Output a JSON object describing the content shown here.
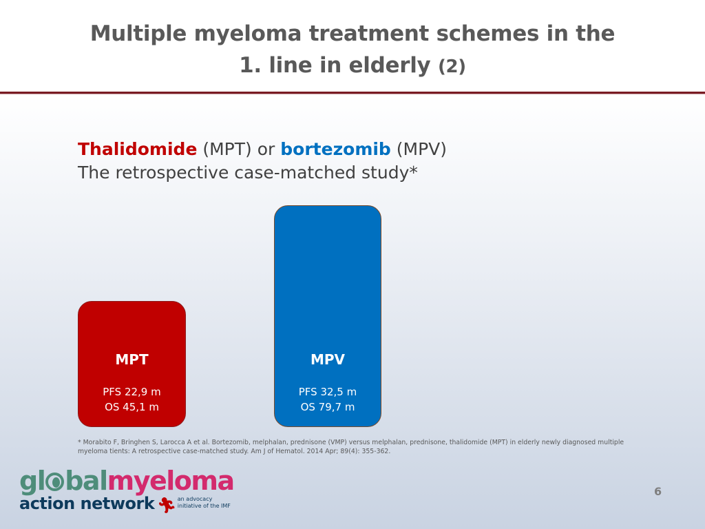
{
  "slide": {
    "title_line1": "Multiple myeloma treatment schemes in the",
    "title_line2_main": "1. line in elderly",
    "title_line2_suffix": "(2)",
    "subtitle": {
      "drug1": "Thalidomide",
      "drug1_abbr": "(MPT)",
      "connector": "or",
      "drug2": "bortezomib",
      "drug2_abbr": "(MPV)",
      "line2": "The retrospective case-matched study*"
    },
    "bars": [
      {
        "label": "MPT",
        "pfs": "PFS 22,9 m",
        "os": "OS 45,1 m",
        "color": "#c00000"
      },
      {
        "label": "MPV",
        "pfs": "PFS 32,5 m",
        "os": "OS 79,7 m",
        "color": "#0070c0"
      }
    ],
    "footnote": "* Morabito F, Bringhen S, Larocca A et al. Bortezomib, melphalan, prednisone (VMP) versus melphalan, prednisone, thalidomide (MPT) in elderly newly diagnosed multiple myeloma  tients: A retrospective case-matched study. Am J of Hematol. 2014 Apr; 89(4): 355-362.",
    "page_number": "6"
  },
  "logo": {
    "part1": "gl",
    "part2": "bal",
    "part3": "myeloma",
    "line2": "action network",
    "tagline1": "an advocacy",
    "tagline2": "initiative of the IMF",
    "icons": [
      "globe-icon",
      "runner-icon"
    ],
    "colors": {
      "green": "#4e8d7a",
      "pink": "#d32a6d",
      "navy": "#0d3a5c"
    }
  }
}
